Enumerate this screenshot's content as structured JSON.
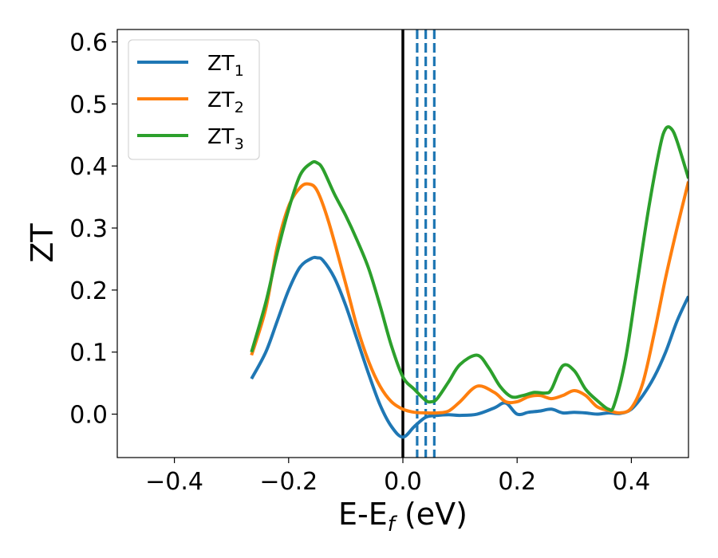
{
  "chart_data": {
    "type": "line",
    "xlabel": "E-E",
    "xlabel_sub": "f",
    "xlabel_unit": " (eV)",
    "ylabel": "ZT",
    "xlim": [
      -0.5,
      0.5
    ],
    "ylim": [
      -0.07,
      0.62
    ],
    "xticks": [
      -0.4,
      -0.2,
      0.0,
      0.2,
      0.4
    ],
    "xtick_labels": [
      "−0.4",
      "−0.2",
      "0.0",
      "0.2",
      "0.4"
    ],
    "yticks": [
      0.0,
      0.1,
      0.2,
      0.3,
      0.4,
      0.5,
      0.6
    ],
    "ytick_labels": [
      "0.0",
      "0.1",
      "0.2",
      "0.3",
      "0.4",
      "0.5",
      "0.6"
    ],
    "grid": false,
    "legend_position": "top-left",
    "vertical_lines": [
      {
        "x": 0.0,
        "style": "solid",
        "color": "#000000"
      },
      {
        "x": 0.025,
        "style": "dashed",
        "color": "#1f77b4"
      },
      {
        "x": 0.04,
        "style": "dashed",
        "color": "#1f77b4"
      },
      {
        "x": 0.055,
        "style": "dashed",
        "color": "#1f77b4"
      }
    ],
    "series": [
      {
        "name": "ZT",
        "sub": "1",
        "color": "#1f77b4",
        "x": [
          -0.265,
          -0.24,
          -0.22,
          -0.2,
          -0.18,
          -0.16,
          -0.15,
          -0.14,
          -0.12,
          -0.1,
          -0.08,
          -0.06,
          -0.04,
          -0.02,
          0.0,
          0.02,
          0.04,
          0.06,
          0.08,
          0.1,
          0.13,
          0.16,
          0.18,
          0.2,
          0.22,
          0.24,
          0.26,
          0.28,
          0.3,
          0.32,
          0.34,
          0.36,
          0.38,
          0.4,
          0.42,
          0.44,
          0.46,
          0.48,
          0.5
        ],
        "y": [
          0.057,
          0.1,
          0.15,
          0.2,
          0.237,
          0.251,
          0.252,
          0.248,
          0.22,
          0.175,
          0.12,
          0.065,
          0.015,
          -0.02,
          -0.037,
          -0.02,
          -0.005,
          -0.002,
          -0.001,
          -0.002,
          0.0,
          0.01,
          0.018,
          0.0,
          0.003,
          0.005,
          0.008,
          0.002,
          0.003,
          0.002,
          0.0,
          0.002,
          0.001,
          0.008,
          0.03,
          0.06,
          0.1,
          0.15,
          0.19
        ]
      },
      {
        "name": "ZT",
        "sub": "2",
        "color": "#ff7f0e",
        "x": [
          -0.265,
          -0.24,
          -0.22,
          -0.2,
          -0.18,
          -0.165,
          -0.15,
          -0.13,
          -0.1,
          -0.08,
          -0.06,
          -0.04,
          -0.02,
          0.0,
          0.02,
          0.04,
          0.06,
          0.08,
          0.1,
          0.13,
          0.16,
          0.18,
          0.2,
          0.22,
          0.24,
          0.26,
          0.28,
          0.3,
          0.32,
          0.34,
          0.36,
          0.38,
          0.4,
          0.42,
          0.44,
          0.46,
          0.48,
          0.5
        ],
        "y": [
          0.095,
          0.17,
          0.27,
          0.335,
          0.365,
          0.371,
          0.36,
          0.31,
          0.21,
          0.14,
          0.085,
          0.045,
          0.02,
          0.008,
          0.003,
          0.002,
          0.002,
          0.005,
          0.02,
          0.045,
          0.035,
          0.02,
          0.02,
          0.028,
          0.03,
          0.025,
          0.03,
          0.038,
          0.03,
          0.012,
          0.006,
          0.002,
          0.01,
          0.05,
          0.13,
          0.22,
          0.3,
          0.375
        ]
      },
      {
        "name": "ZT",
        "sub": "3",
        "color": "#2ca02c",
        "x": [
          -0.265,
          -0.24,
          -0.22,
          -0.2,
          -0.18,
          -0.16,
          -0.15,
          -0.14,
          -0.12,
          -0.1,
          -0.08,
          -0.06,
          -0.04,
          -0.02,
          0.0,
          0.02,
          0.04,
          0.05,
          0.06,
          0.08,
          0.1,
          0.13,
          0.15,
          0.17,
          0.19,
          0.21,
          0.23,
          0.25,
          0.26,
          0.28,
          0.3,
          0.32,
          0.34,
          0.36,
          0.37,
          0.39,
          0.41,
          0.43,
          0.45,
          0.46,
          0.47,
          0.48,
          0.5
        ],
        "y": [
          0.1,
          0.18,
          0.26,
          0.33,
          0.385,
          0.405,
          0.405,
          0.395,
          0.355,
          0.32,
          0.28,
          0.235,
          0.175,
          0.11,
          0.06,
          0.04,
          0.022,
          0.02,
          0.025,
          0.052,
          0.08,
          0.095,
          0.075,
          0.045,
          0.028,
          0.03,
          0.035,
          0.034,
          0.04,
          0.078,
          0.07,
          0.04,
          0.022,
          0.008,
          0.015,
          0.09,
          0.21,
          0.33,
          0.43,
          0.46,
          0.46,
          0.44,
          0.38
        ]
      }
    ]
  }
}
